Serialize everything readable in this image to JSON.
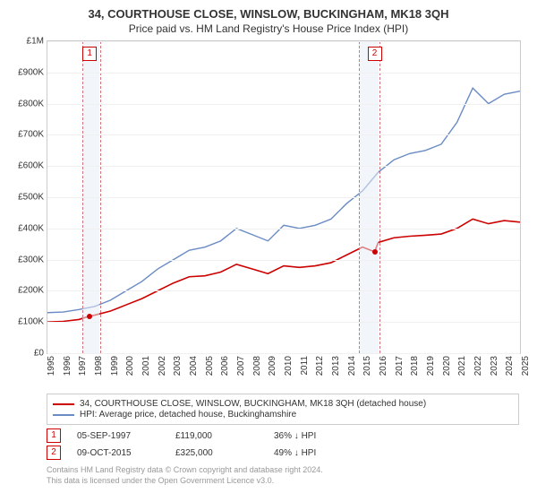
{
  "title": "34, COURTHOUSE CLOSE, WINSLOW, BUCKINGHAM, MK18 3QH",
  "subtitle": "Price paid vs. HM Land Registry's House Price Index (HPI)",
  "colors": {
    "series_property": "#cc0000",
    "series_hpi": "#6a8bc4",
    "grid": "#f0f0f0",
    "border": "#cccccc",
    "shade": "#e8edf5",
    "shade_red": "#d4747c",
    "muted": "#999999"
  },
  "y_axis": {
    "min": 0,
    "max": 1000000,
    "step": 100000,
    "labels": [
      "£0",
      "£100K",
      "£200K",
      "£300K",
      "£400K",
      "£500K",
      "£600K",
      "£700K",
      "£800K",
      "£900K",
      "£1M"
    ]
  },
  "x_axis": {
    "min": 1995,
    "max": 2025,
    "labels": [
      "1995",
      "1996",
      "1997",
      "1998",
      "1999",
      "2000",
      "2001",
      "2002",
      "2003",
      "2004",
      "2005",
      "2006",
      "2007",
      "2008",
      "2009",
      "2010",
      "2011",
      "2012",
      "2013",
      "2014",
      "2015",
      "2016",
      "2017",
      "2018",
      "2019",
      "2020",
      "2021",
      "2022",
      "2023",
      "2024",
      "2025"
    ]
  },
  "shaded_ranges": [
    {
      "from": 1997.2,
      "to": 1998.3
    },
    {
      "from": 2014.8,
      "to": 2016.0
    }
  ],
  "series": {
    "hpi": [
      [
        1995,
        130000
      ],
      [
        1996,
        132000
      ],
      [
        1997,
        140000
      ],
      [
        1998,
        150000
      ],
      [
        1999,
        170000
      ],
      [
        2000,
        200000
      ],
      [
        2001,
        230000
      ],
      [
        2002,
        270000
      ],
      [
        2003,
        300000
      ],
      [
        2004,
        330000
      ],
      [
        2005,
        340000
      ],
      [
        2006,
        360000
      ],
      [
        2007,
        400000
      ],
      [
        2008,
        380000
      ],
      [
        2009,
        360000
      ],
      [
        2010,
        410000
      ],
      [
        2011,
        400000
      ],
      [
        2012,
        410000
      ],
      [
        2013,
        430000
      ],
      [
        2014,
        480000
      ],
      [
        2015,
        520000
      ],
      [
        2016,
        580000
      ],
      [
        2017,
        620000
      ],
      [
        2018,
        640000
      ],
      [
        2019,
        650000
      ],
      [
        2020,
        670000
      ],
      [
        2021,
        740000
      ],
      [
        2022,
        850000
      ],
      [
        2023,
        800000
      ],
      [
        2024,
        830000
      ],
      [
        2025,
        840000
      ]
    ],
    "property": [
      [
        1995,
        100000
      ],
      [
        1996,
        102000
      ],
      [
        1997,
        108000
      ],
      [
        1997.68,
        119000
      ],
      [
        1998,
        122000
      ],
      [
        1999,
        135000
      ],
      [
        2000,
        155000
      ],
      [
        2001,
        175000
      ],
      [
        2002,
        200000
      ],
      [
        2003,
        225000
      ],
      [
        2004,
        245000
      ],
      [
        2005,
        248000
      ],
      [
        2006,
        260000
      ],
      [
        2007,
        285000
      ],
      [
        2008,
        270000
      ],
      [
        2009,
        255000
      ],
      [
        2010,
        280000
      ],
      [
        2011,
        275000
      ],
      [
        2012,
        280000
      ],
      [
        2013,
        290000
      ],
      [
        2014,
        315000
      ],
      [
        2015,
        340000
      ],
      [
        2015.77,
        325000
      ],
      [
        2016,
        355000
      ],
      [
        2017,
        370000
      ],
      [
        2018,
        375000
      ],
      [
        2019,
        378000
      ],
      [
        2020,
        382000
      ],
      [
        2021,
        400000
      ],
      [
        2022,
        430000
      ],
      [
        2023,
        415000
      ],
      [
        2024,
        425000
      ],
      [
        2025,
        420000
      ]
    ]
  },
  "sales": [
    {
      "n": "1",
      "year": 1997.68,
      "price": 119000,
      "date": "05-SEP-1997",
      "price_label": "£119,000",
      "delta": "36% ↓ HPI"
    },
    {
      "n": "2",
      "year": 2015.77,
      "price": 325000,
      "date": "09-OCT-2015",
      "price_label": "£325,000",
      "delta": "49% ↓ HPI"
    }
  ],
  "legend": {
    "property": "34, COURTHOUSE CLOSE, WINSLOW, BUCKINGHAM, MK18 3QH (detached house)",
    "hpi": "HPI: Average price, detached house, Buckinghamshire"
  },
  "footer_line1": "Contains HM Land Registry data © Crown copyright and database right 2024.",
  "footer_line2": "This data is licensed under the Open Government Licence v3.0."
}
